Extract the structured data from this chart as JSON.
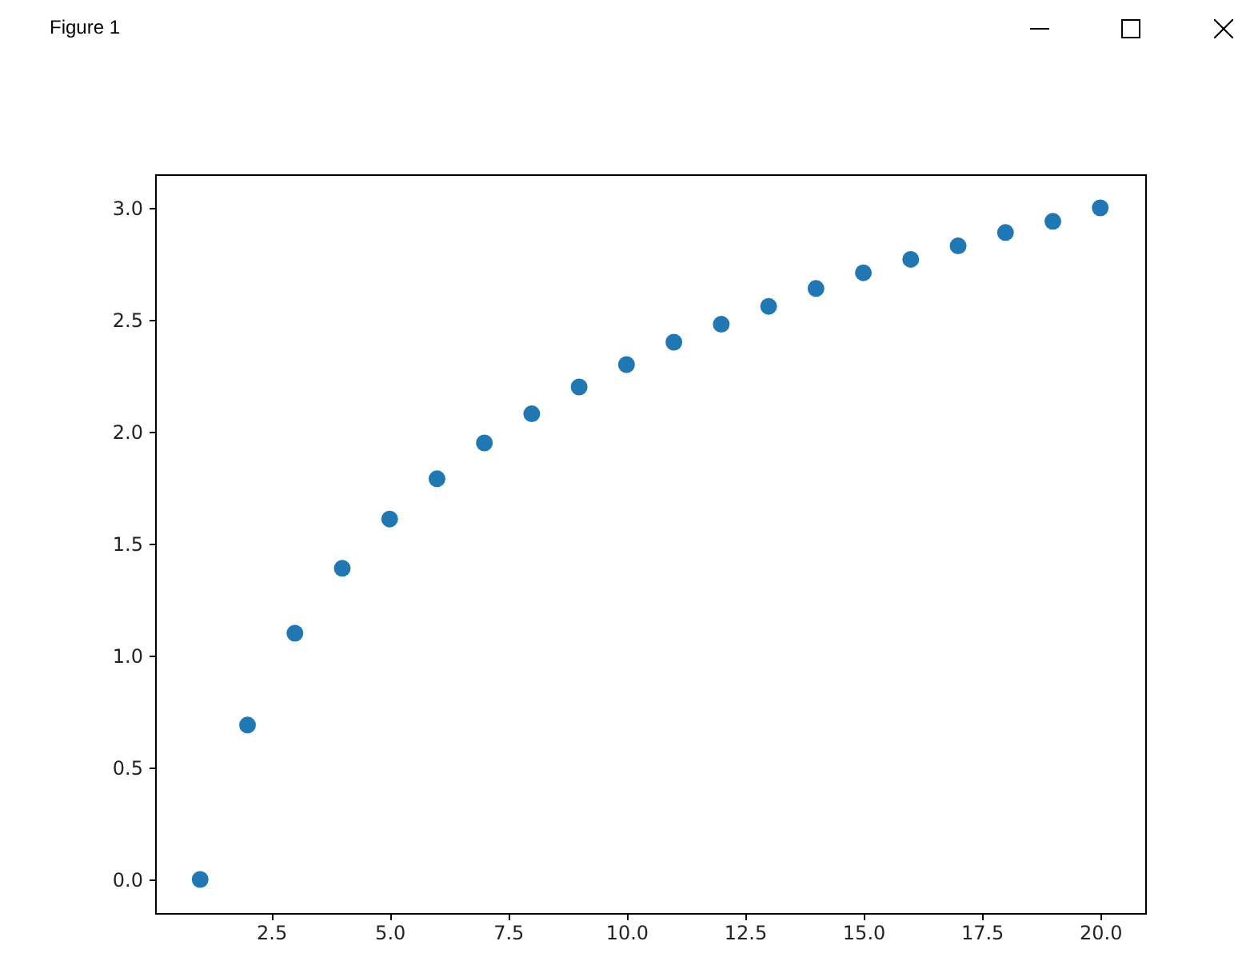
{
  "chart_data": {
    "type": "scatter",
    "annotations": [
      "Figure 1"
    ],
    "x": [
      1,
      2,
      3,
      4,
      5,
      6,
      7,
      8,
      9,
      10,
      11,
      12,
      13,
      14,
      15,
      16,
      17,
      18,
      19,
      20
    ],
    "series": [
      {
        "color": "#1f77b4",
        "values": [
          0,
          0.69,
          1.1,
          1.39,
          1.61,
          1.79,
          1.95,
          2.08,
          2.2,
          2.3,
          2.4,
          2.48,
          2.56,
          2.64,
          2.71,
          2.77,
          2.83,
          2.89,
          2.94,
          3.0
        ]
      }
    ],
    "xlim": [
      0.05,
      20.95
    ],
    "xticks": [
      {
        "value": 2.5,
        "label": "2.5"
      },
      {
        "value": 5,
        "label": "5.0"
      },
      {
        "value": 7.5,
        "label": "7.5"
      },
      {
        "value": 10,
        "label": "10.0"
      },
      {
        "value": 12.5,
        "label": "12.5"
      },
      {
        "value": 15,
        "label": "15.0"
      },
      {
        "value": 17.5,
        "label": "17.5"
      },
      {
        "value": 20,
        "label": "20.0"
      }
    ],
    "ylim": [
      -0.15,
      3.15
    ],
    "yticks": [
      {
        "value": 0,
        "label": "0.0"
      },
      {
        "value": 0.5,
        "label": "0.5"
      },
      {
        "value": 1,
        "label": "1.0"
      },
      {
        "value": 1.5,
        "label": "1.5"
      },
      {
        "value": 2,
        "label": "2.0"
      },
      {
        "value": 2.5,
        "label": "2.5"
      },
      {
        "value": 3,
        "label": "3.0"
      }
    ],
    "grid": false,
    "marker": "circle"
  }
}
